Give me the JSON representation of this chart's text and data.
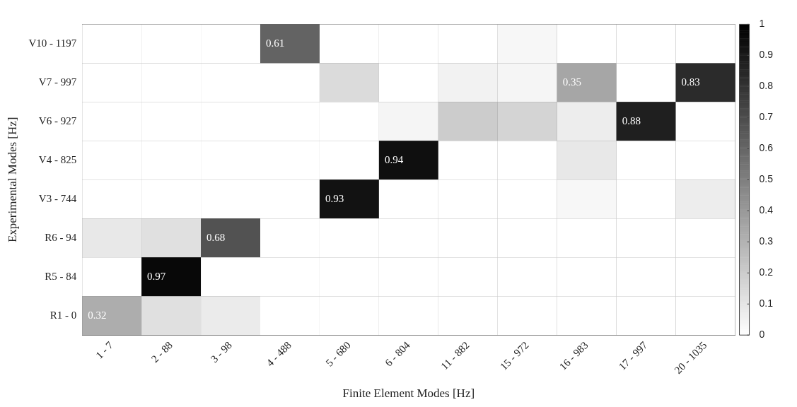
{
  "chart_data": {
    "type": "heatmap",
    "xlabel": "Finite Element Modes [Hz]",
    "ylabel": "Experimental Modes [Hz]",
    "categories": [
      "1 - 7",
      "2 - 88",
      "3 - 98",
      "4 - 488",
      "5 - 680",
      "6 - 804",
      "11 - 882",
      "15 - 972",
      "16 - 983",
      "17 - 997",
      "20 - 1035"
    ],
    "y_categories": [
      "V10 - 1197",
      "V7 - 997",
      "V6 - 927",
      "V4 - 825",
      "V3 - 744",
      "R6 - 94",
      "R5 - 84",
      "R1 - 0"
    ],
    "cells": [
      [
        0,
        0,
        0,
        0.61,
        0,
        0,
        0,
        0.03,
        0,
        0,
        0
      ],
      [
        0,
        0,
        0,
        0,
        0.14,
        0,
        0.05,
        0.04,
        0.35,
        0,
        0.83
      ],
      [
        0,
        0,
        0,
        0,
        0,
        0.04,
        0.2,
        0.17,
        0.07,
        0.88,
        0
      ],
      [
        0,
        0,
        0,
        0,
        0,
        0.94,
        0,
        0,
        0.09,
        0,
        0
      ],
      [
        0,
        0,
        0,
        0,
        0.93,
        0,
        0,
        0,
        0.03,
        0,
        0.07
      ],
      [
        0.09,
        0.12,
        0.68,
        0,
        0,
        0,
        0,
        0,
        0,
        0,
        0
      ],
      [
        0,
        0.97,
        0,
        0,
        0,
        0,
        0,
        0,
        0,
        0,
        0
      ],
      [
        0.32,
        0.12,
        0.08,
        0,
        0,
        0,
        0,
        0,
        0,
        0,
        0
      ]
    ],
    "cell_labels": [
      [
        null,
        null,
        null,
        "0.61",
        null,
        null,
        null,
        null,
        null,
        null,
        null
      ],
      [
        null,
        null,
        null,
        null,
        null,
        null,
        null,
        null,
        "0.35",
        null,
        "0.83"
      ],
      [
        null,
        null,
        null,
        null,
        null,
        null,
        null,
        null,
        null,
        "0.88",
        null
      ],
      [
        null,
        null,
        null,
        null,
        null,
        "0.94",
        null,
        null,
        null,
        null,
        null
      ],
      [
        null,
        null,
        null,
        null,
        "0.93",
        null,
        null,
        null,
        null,
        null,
        null
      ],
      [
        null,
        null,
        "0.68",
        null,
        null,
        null,
        null,
        null,
        null,
        null,
        null
      ],
      [
        null,
        "0.97",
        null,
        null,
        null,
        null,
        null,
        null,
        null,
        null,
        null
      ],
      [
        "0.32",
        null,
        null,
        null,
        null,
        null,
        null,
        null,
        null,
        null,
        null
      ]
    ],
    "clim": [
      0,
      1
    ],
    "cticks": [
      0,
      0.1,
      0.2,
      0.3,
      0.4,
      0.5,
      0.6,
      0.7,
      0.8,
      0.9,
      1
    ]
  }
}
